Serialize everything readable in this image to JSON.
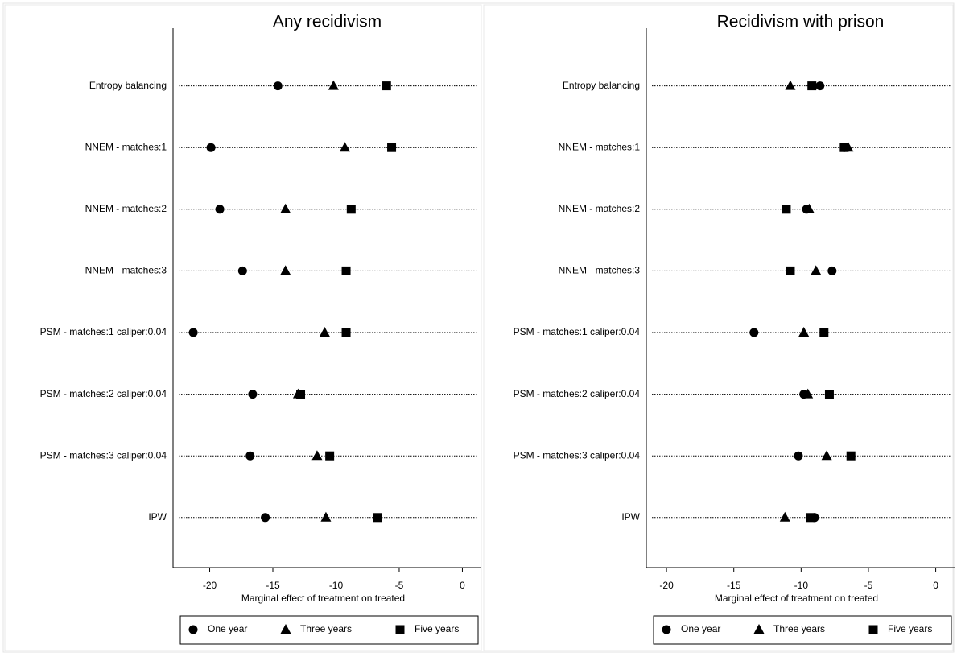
{
  "chart_data": [
    {
      "type": "dot",
      "title": "Any recidivism",
      "xlabel": "Marginal effect of treatment on treated",
      "categories": [
        "Entropy balancing",
        "NNEM - matches:1",
        "NNEM - matches:2",
        "NNEM - matches:3",
        "PSM - matches:1 caliper:0.04",
        "PSM - matches:2 caliper:0.04",
        "PSM - matches:3 caliper:0.04",
        "IPW"
      ],
      "series": [
        {
          "name": "One year",
          "marker": "circle",
          "color": "#000000",
          "values": [
            -14.6,
            -19.9,
            -19.2,
            -17.4,
            -21.3,
            -16.6,
            -16.8,
            -15.6
          ]
        },
        {
          "name": "Three years",
          "marker": "triangle",
          "color": "#000000",
          "values": [
            -10.2,
            -9.3,
            -14.0,
            -14.0,
            -10.9,
            -13.0,
            -11.5,
            -10.8
          ]
        },
        {
          "name": "Five years",
          "marker": "square",
          "color": "#000000",
          "values": [
            -6.0,
            -5.6,
            -8.8,
            -9.2,
            -9.2,
            -12.8,
            -10.5,
            -6.7
          ]
        }
      ],
      "xlim": [
        -22.9,
        1.5
      ],
      "xticks": [
        -20,
        -15,
        -10,
        -5,
        0
      ],
      "legend": "bottom"
    },
    {
      "type": "dot",
      "title": "Recidivism with prison",
      "xlabel": "Marginal effect of treatment on treated",
      "categories": [
        "Entropy balancing",
        "NNEM - matches:1",
        "NNEM - matches:2",
        "NNEM - matches:3",
        "PSM - matches:1 caliper:0.04",
        "PSM - matches:2 caliper:0.04",
        "PSM - matches:3 caliper:0.04",
        "IPW"
      ],
      "series": [
        {
          "name": "One year",
          "marker": "circle",
          "color": "#000000",
          "values": [
            -8.6,
            -6.8,
            -9.6,
            -7.7,
            -13.5,
            -9.8,
            -10.2,
            -9.0
          ]
        },
        {
          "name": "Three years",
          "marker": "triangle",
          "color": "#000000",
          "values": [
            -10.8,
            -6.5,
            -9.4,
            -8.9,
            -9.8,
            -9.5,
            -8.1,
            -11.2
          ]
        },
        {
          "name": "Five years",
          "marker": "square",
          "color": "#000000",
          "values": [
            -9.2,
            -6.8,
            -11.1,
            -10.8,
            -8.3,
            -7.9,
            -6.3,
            -9.3
          ]
        }
      ],
      "xlim": [
        -21.5,
        1.4
      ],
      "xticks": [
        -20,
        -15,
        -10,
        -5,
        0
      ],
      "legend": "bottom"
    }
  ]
}
